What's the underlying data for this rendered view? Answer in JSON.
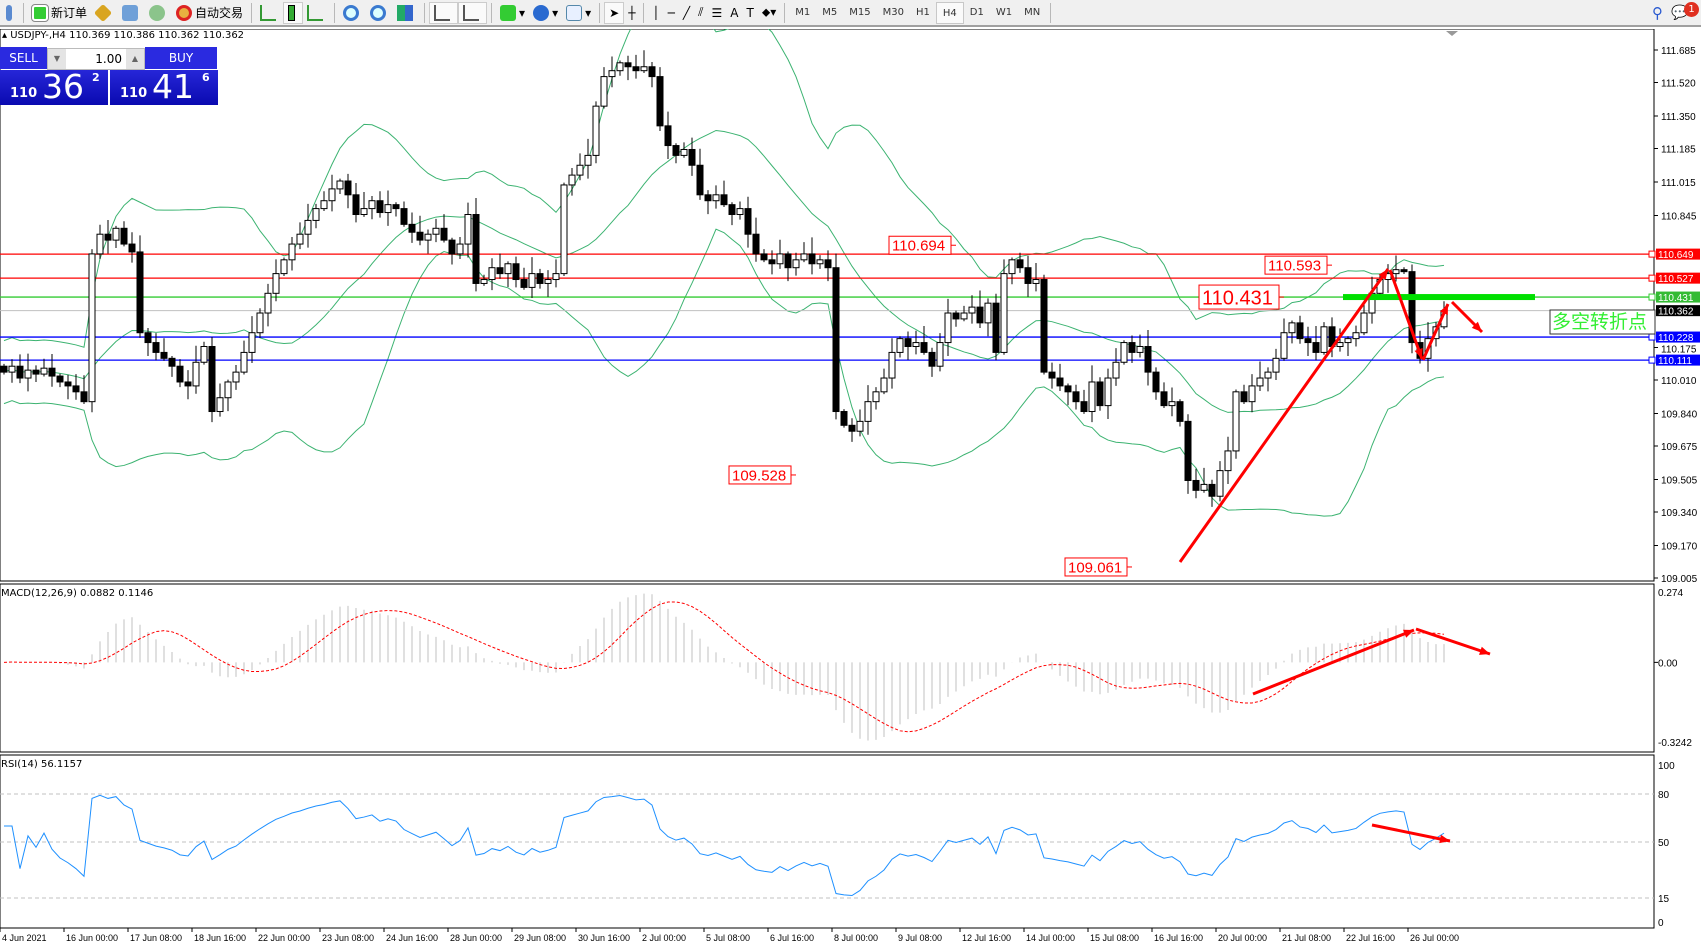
{
  "toolbar": {
    "new_order": "新订单",
    "auto_trading": "自动交易",
    "timeframes": [
      "M1",
      "M5",
      "M15",
      "M30",
      "H1",
      "H4",
      "D1",
      "W1",
      "MN"
    ],
    "active_timeframe": "H4",
    "notification_count": "1"
  },
  "chart_header": {
    "symbol_line": "USDJPY-,H4  110.369 110.386 110.362 110.362"
  },
  "trade_panel": {
    "sell_label": "SELL",
    "buy_label": "BUY",
    "lot": "1.00",
    "sell_small": "110",
    "sell_big": "36",
    "sell_exp": "2",
    "buy_small": "110",
    "buy_big": "41",
    "buy_exp": "6"
  },
  "colors": {
    "bull": "#ffffff",
    "bear": "#000000",
    "bands": "#3cb371",
    "resistance": "#ff0000",
    "pivot": "#00e000",
    "support": "#0000ff",
    "macd_hist": "#c0c0c0",
    "macd_signal": "#ff0000",
    "rsi": "#1e90ff",
    "annotation": "#ff0000"
  },
  "chart_data": {
    "type": "candlestick",
    "symbol": "USDJPY-",
    "timeframe": "H4",
    "ylim": [
      109.005,
      111.685
    ],
    "price_ticks": [
      "111.685",
      "111.520",
      "111.350",
      "111.185",
      "111.015",
      "110.845",
      "110.175",
      "110.010",
      "109.840",
      "109.675",
      "109.505",
      "109.340",
      "109.170",
      "109.005"
    ],
    "time_labels": [
      "4 Jun 2021",
      "16 Jun 00:00",
      "17 Jun 08:00",
      "18 Jun 16:00",
      "22 Jun 00:00",
      "23 Jun 08:00",
      "24 Jun 16:00",
      "28 Jun 00:00",
      "29 Jun 08:00",
      "30 Jun 16:00",
      "2 Jul 00:00",
      "5 Jul 08:00",
      "6 Jul 16:00",
      "8 Jul 00:00",
      "9 Jul 08:00",
      "12 Jul 16:00",
      "14 Jul 00:00",
      "15 Jul 08:00",
      "16 Jul 16:00",
      "20 Jul 00:00",
      "21 Jul 08:00",
      "22 Jul 16:00",
      "26 Jul 00:00"
    ],
    "closes": [
      110.05,
      110.08,
      110.02,
      110.06,
      110.04,
      110.07,
      110.03,
      110.0,
      109.98,
      109.95,
      109.9,
      110.65,
      110.75,
      110.72,
      110.78,
      110.7,
      110.66,
      110.25,
      110.2,
      110.15,
      110.12,
      110.08,
      110.0,
      109.98,
      110.1,
      110.18,
      109.85,
      109.92,
      110.0,
      110.05,
      110.15,
      110.25,
      110.35,
      110.45,
      110.55,
      110.62,
      110.7,
      110.75,
      110.82,
      110.88,
      110.92,
      110.98,
      111.02,
      110.95,
      110.85,
      110.88,
      110.92,
      110.86,
      110.9,
      110.88,
      110.8,
      110.76,
      110.72,
      110.75,
      110.78,
      110.72,
      110.65,
      110.7,
      110.85,
      110.5,
      110.52,
      110.58,
      110.55,
      110.6,
      110.52,
      110.48,
      110.55,
      110.5,
      110.52,
      110.55,
      111.0,
      111.05,
      111.1,
      111.15,
      111.4,
      111.55,
      111.58,
      111.62,
      111.6,
      111.58,
      111.6,
      111.55,
      111.3,
      111.2,
      111.15,
      111.18,
      111.1,
      110.95,
      110.92,
      110.95,
      110.9,
      110.85,
      110.88,
      110.75,
      110.65,
      110.62,
      110.6,
      110.65,
      110.58,
      110.62,
      110.65,
      110.6,
      110.62,
      110.58,
      109.85,
      109.78,
      109.75,
      109.8,
      109.9,
      109.95,
      110.02,
      110.15,
      110.22,
      110.18,
      110.2,
      110.15,
      110.08,
      110.2,
      110.35,
      110.32,
      110.35,
      110.38,
      110.3,
      110.4,
      110.15,
      110.55,
      110.62,
      110.58,
      110.5,
      110.52,
      110.05,
      110.02,
      109.98,
      109.95,
      109.9,
      109.85,
      110.0,
      109.88,
      110.02,
      110.1,
      110.2,
      110.15,
      110.18,
      110.05,
      109.95,
      109.88,
      109.9,
      109.8,
      109.5,
      109.45,
      109.48,
      109.42,
      109.55,
      109.65,
      109.95,
      109.9,
      109.98,
      110.02,
      110.05,
      110.12,
      110.25,
      110.3,
      110.22,
      110.2,
      110.15,
      110.28,
      110.18,
      110.2,
      110.22,
      110.25,
      110.35,
      110.45,
      110.52,
      110.55,
      110.57,
      110.56,
      110.2,
      110.12,
      110.22,
      110.28,
      110.362
    ],
    "horizontal_lines": [
      {
        "price": 110.649,
        "label": "110.649",
        "color": "#ff0000"
      },
      {
        "price": 110.527,
        "label": "110.527",
        "color": "#ff0000"
      },
      {
        "price": 110.431,
        "label": "110.431",
        "color": "#33cc33"
      },
      {
        "price": 110.362,
        "label": "110.362",
        "color": "#000000",
        "current": true
      },
      {
        "price": 110.228,
        "label": "110.228",
        "color": "#0000ff"
      },
      {
        "price": 110.111,
        "label": "110.111",
        "color": "#0000ff"
      }
    ],
    "price_labels": [
      {
        "text": "110.694",
        "price": 110.694,
        "candle": 119
      },
      {
        "text": "109.528",
        "price": 109.528,
        "candle": 99
      },
      {
        "text": "109.061",
        "price": 109.061,
        "candle": 141
      },
      {
        "text": "110.593",
        "price": 110.593,
        "candle": 166
      },
      {
        "text": "110.431",
        "price": 110.431,
        "candle": 160,
        "large": true
      }
    ],
    "pivot_text": "多空转折点",
    "bollinger": {
      "period": 20,
      "deviations": 2
    },
    "macd": {
      "label": "MACD(12,26,9) 0.0882 0.1146",
      "ylim": [
        -0.3242,
        0.274
      ],
      "ticks": [
        "0.274",
        "0.00",
        "-0.3242"
      ]
    },
    "rsi": {
      "label": "RSI(14) 56.1157",
      "ylim": [
        0,
        100
      ],
      "levels": [
        80,
        50,
        15
      ],
      "ticks": [
        "100",
        "80",
        "50",
        "15",
        "0"
      ]
    }
  }
}
